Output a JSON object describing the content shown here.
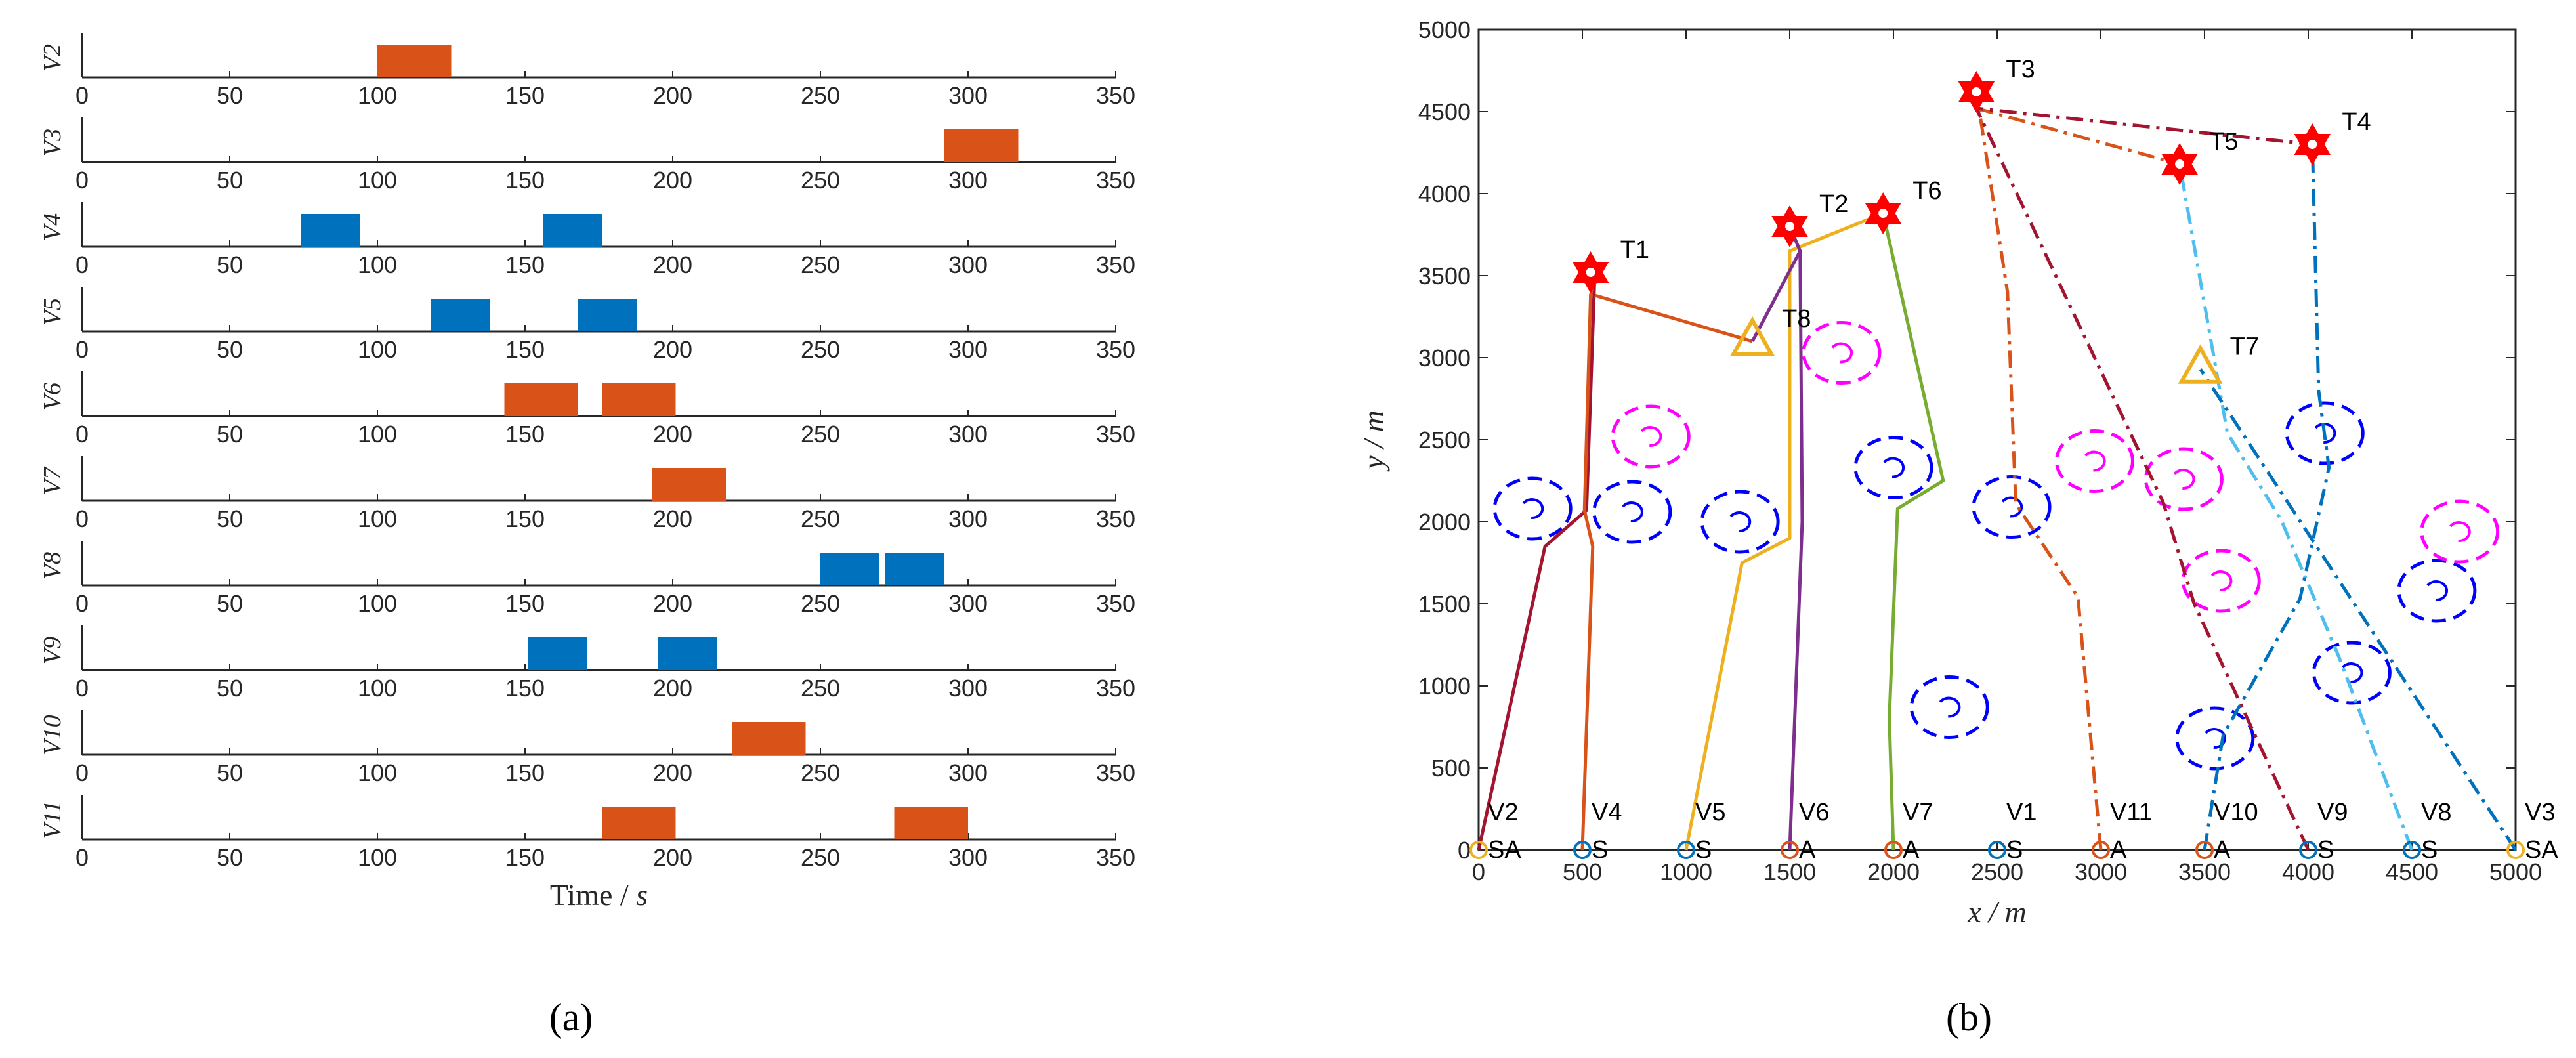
{
  "panel_a_label": "(a)",
  "panel_b_label": "(b)",
  "chart_data": [
    {
      "type": "bar",
      "subtype": "gantt",
      "xlabel": "Time / s",
      "xlim": [
        0,
        350
      ],
      "xticks": [
        0,
        50,
        100,
        150,
        200,
        250,
        300,
        350
      ],
      "colors": {
        "S": "#0072BD",
        "A": "#D95319"
      },
      "rows": [
        {
          "name": "V2",
          "intervals": [
            {
              "start": 100,
              "end": 125,
              "type": "A"
            }
          ]
        },
        {
          "name": "V3",
          "intervals": [
            {
              "start": 292,
              "end": 317,
              "type": "A"
            }
          ]
        },
        {
          "name": "V4",
          "intervals": [
            {
              "start": 74,
              "end": 94,
              "type": "S"
            },
            {
              "start": 156,
              "end": 176,
              "type": "S"
            }
          ]
        },
        {
          "name": "V5",
          "intervals": [
            {
              "start": 118,
              "end": 138,
              "type": "S"
            },
            {
              "start": 168,
              "end": 188,
              "type": "S"
            }
          ]
        },
        {
          "name": "V6",
          "intervals": [
            {
              "start": 143,
              "end": 168,
              "type": "A"
            },
            {
              "start": 176,
              "end": 201,
              "type": "A"
            }
          ]
        },
        {
          "name": "V7",
          "intervals": [
            {
              "start": 193,
              "end": 218,
              "type": "A"
            }
          ]
        },
        {
          "name": "V8",
          "intervals": [
            {
              "start": 250,
              "end": 270,
              "type": "S"
            },
            {
              "start": 272,
              "end": 292,
              "type": "S"
            }
          ]
        },
        {
          "name": "V9",
          "intervals": [
            {
              "start": 151,
              "end": 171,
              "type": "S"
            },
            {
              "start": 195,
              "end": 215,
              "type": "S"
            }
          ]
        },
        {
          "name": "V10",
          "intervals": [
            {
              "start": 220,
              "end": 245,
              "type": "A"
            }
          ]
        },
        {
          "name": "V11",
          "intervals": [
            {
              "start": 176,
              "end": 201,
              "type": "A"
            },
            {
              "start": 275,
              "end": 300,
              "type": "A"
            }
          ]
        }
      ]
    },
    {
      "type": "line",
      "subtype": "trajectory-map",
      "xlabel": "x / m",
      "ylabel": "y / m",
      "xlim": [
        0,
        5000
      ],
      "ylim": [
        0,
        5000
      ],
      "xticks": [
        0,
        500,
        1000,
        1500,
        2000,
        2500,
        3000,
        3500,
        4000,
        4500,
        5000
      ],
      "yticks": [
        0,
        500,
        1000,
        1500,
        2000,
        2500,
        3000,
        3500,
        4000,
        4500,
        5000
      ],
      "vehicles": [
        {
          "name": "V2",
          "type": "SA",
          "x": 0,
          "y": 0,
          "color": "#EDB120"
        },
        {
          "name": "V4",
          "type": "S",
          "x": 500,
          "y": 0,
          "color": "#0072BD"
        },
        {
          "name": "V5",
          "type": "S",
          "x": 1000,
          "y": 0,
          "color": "#0072BD"
        },
        {
          "name": "V6",
          "type": "A",
          "x": 1500,
          "y": 0,
          "color": "#D95319"
        },
        {
          "name": "V7",
          "type": "A",
          "x": 2000,
          "y": 0,
          "color": "#D95319"
        },
        {
          "name": "V1",
          "type": "S",
          "x": 2500,
          "y": 0,
          "color": "#0072BD"
        },
        {
          "name": "V11",
          "type": "A",
          "x": 3000,
          "y": 0,
          "color": "#D95319"
        },
        {
          "name": "V10",
          "type": "A",
          "x": 3500,
          "y": 0,
          "color": "#D95319"
        },
        {
          "name": "V9",
          "type": "S",
          "x": 4000,
          "y": 0,
          "color": "#0072BD"
        },
        {
          "name": "V8",
          "type": "S",
          "x": 4500,
          "y": 0,
          "color": "#0072BD"
        },
        {
          "name": "V3",
          "type": "SA",
          "x": 5000,
          "y": 0,
          "color": "#EDB120"
        }
      ],
      "targets": [
        {
          "name": "T1",
          "x": 540,
          "y": 3520,
          "marker": "hexagram"
        },
        {
          "name": "T2",
          "x": 1500,
          "y": 3800,
          "marker": "hexagram"
        },
        {
          "name": "T6",
          "x": 1950,
          "y": 3880,
          "marker": "hexagram"
        },
        {
          "name": "T3",
          "x": 2400,
          "y": 4620,
          "marker": "hexagram"
        },
        {
          "name": "T5",
          "x": 3380,
          "y": 4180,
          "marker": "hexagram"
        },
        {
          "name": "T4",
          "x": 4020,
          "y": 4300,
          "marker": "hexagram"
        },
        {
          "name": "T8",
          "x": 1320,
          "y": 3100,
          "marker": "triangle"
        },
        {
          "name": "T7",
          "x": 3480,
          "y": 2930,
          "marker": "triangle"
        }
      ],
      "threats": [
        {
          "x": 260,
          "y": 2080,
          "color": "#0000FF"
        },
        {
          "x": 740,
          "y": 2060,
          "color": "#0000FF"
        },
        {
          "x": 1260,
          "y": 2000,
          "color": "#0000FF"
        },
        {
          "x": 2000,
          "y": 2330,
          "color": "#0000FF"
        },
        {
          "x": 2570,
          "y": 2090,
          "color": "#0000FF"
        },
        {
          "x": 2270,
          "y": 870,
          "color": "#0000FF"
        },
        {
          "x": 3550,
          "y": 680,
          "color": "#0000FF"
        },
        {
          "x": 4080,
          "y": 2540,
          "color": "#0000FF"
        },
        {
          "x": 4620,
          "y": 1580,
          "color": "#0000FF"
        },
        {
          "x": 4210,
          "y": 1080,
          "color": "#0000FF"
        },
        {
          "x": 830,
          "y": 2520,
          "color": "#FF00FF"
        },
        {
          "x": 1750,
          "y": 3030,
          "color": "#FF00FF"
        },
        {
          "x": 2970,
          "y": 2370,
          "color": "#FF00FF"
        },
        {
          "x": 3400,
          "y": 2260,
          "color": "#FF00FF"
        },
        {
          "x": 3580,
          "y": 1640,
          "color": "#FF00FF"
        },
        {
          "x": 4730,
          "y": 1940,
          "color": "#FF00FF"
        }
      ],
      "paths": [
        {
          "color": "#A2142F",
          "dash": "solid",
          "points": [
            [
              0,
              0
            ],
            [
              320,
              1850
            ],
            [
              520,
              2070
            ],
            [
              560,
              3520
            ]
          ]
        },
        {
          "color": "#D95319",
          "dash": "solid",
          "points": [
            [
              500,
              0
            ],
            [
              550,
              1850
            ],
            [
              510,
              2070
            ],
            [
              540,
              3380
            ],
            [
              560,
              3520
            ]
          ]
        },
        {
          "color": "#D95319",
          "dash": "solid",
          "points": [
            [
              560,
              3380
            ],
            [
              1320,
              3100
            ]
          ]
        },
        {
          "color": "#EDB120",
          "dash": "solid",
          "points": [
            [
              1000,
              0
            ],
            [
              1270,
              1750
            ],
            [
              1500,
              1900
            ],
            [
              1500,
              3650
            ],
            [
              1950,
              3880
            ]
          ]
        },
        {
          "color": "#7E2F8E",
          "dash": "solid",
          "points": [
            [
              1500,
              0
            ],
            [
              1560,
              2000
            ],
            [
              1550,
              3650
            ],
            [
              1320,
              3100
            ]
          ]
        },
        {
          "color": "#7E2F8E",
          "dash": "solid",
          "points": [
            [
              1550,
              3650
            ],
            [
              1500,
              3800
            ]
          ]
        },
        {
          "color": "#77AC30",
          "dash": "solid",
          "points": [
            [
              2000,
              0
            ],
            [
              1980,
              800
            ],
            [
              2020,
              2080
            ],
            [
              2240,
              2250
            ],
            [
              1950,
              3880
            ]
          ]
        },
        {
          "color": "#D95319",
          "dash": "dashdot",
          "points": [
            [
              3000,
              0
            ],
            [
              2890,
              1540
            ],
            [
              2590,
              2110
            ],
            [
              2550,
              3400
            ],
            [
              2400,
              4620
            ]
          ]
        },
        {
          "color": "#D95319",
          "dash": "dashdot",
          "points": [
            [
              2400,
              4520
            ],
            [
              3380,
              4180
            ]
          ]
        },
        {
          "color": "#A2142F",
          "dash": "dashdot",
          "points": [
            [
              4000,
              0
            ],
            [
              3450,
              1500
            ],
            [
              3300,
              2120
            ],
            [
              2400,
              4520
            ],
            [
              4020,
              4300
            ]
          ]
        },
        {
          "color": "#4DBEEE",
          "dash": "dashdot",
          "points": [
            [
              4500,
              0
            ],
            [
              4150,
              1170
            ],
            [
              3870,
              2010
            ],
            [
              3610,
              2540
            ],
            [
              3380,
              4180
            ]
          ]
        },
        {
          "color": "#0072BD",
          "dash": "dashdot",
          "points": [
            [
              3500,
              0
            ],
            [
              3590,
              700
            ],
            [
              3960,
              1530
            ],
            [
              4100,
              2330
            ],
            [
              4050,
              2800
            ],
            [
              4020,
              4300
            ]
          ]
        },
        {
          "color": "#0072BD",
          "dash": "dashdot",
          "points": [
            [
              5000,
              0
            ],
            [
              3480,
              2930
            ]
          ]
        }
      ]
    }
  ]
}
